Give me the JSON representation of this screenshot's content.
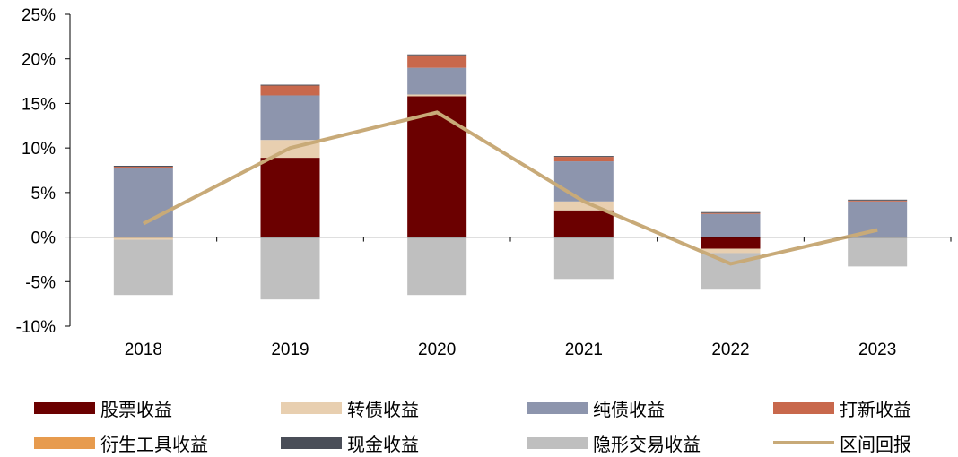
{
  "chart_data": {
    "type": "bar",
    "stacked": true,
    "categories": [
      "2018",
      "2019",
      "2020",
      "2021",
      "2022",
      "2023"
    ],
    "ylim": [
      -10,
      25
    ],
    "yticks": [
      "25%",
      "20%",
      "15%",
      "10%",
      "5%",
      "0%",
      "-5%",
      "-10%"
    ],
    "ytick_values": [
      25,
      20,
      15,
      10,
      5,
      0,
      -5,
      -10
    ],
    "series": [
      {
        "name": "股票收益",
        "color": "#6b0000",
        "values": [
          0,
          8.9,
          15.8,
          3.0,
          -1.3,
          0
        ]
      },
      {
        "name": "转债收益",
        "color": "#e8cfb0",
        "values": [
          -0.3,
          2.0,
          0.2,
          1.0,
          -0.5,
          0
        ]
      },
      {
        "name": "纯债收益",
        "color": "#8d95ad",
        "values": [
          7.7,
          5.0,
          3.0,
          4.5,
          2.6,
          4.0
        ]
      },
      {
        "name": "打新收益",
        "color": "#c8684c",
        "values": [
          0.2,
          1.1,
          1.4,
          0.5,
          0.1,
          0.1
        ]
      },
      {
        "name": "衍生工具收益",
        "color": "#e79b4e",
        "values": [
          0,
          0,
          0,
          0,
          0,
          0
        ]
      },
      {
        "name": "现金收益",
        "color": "#4a4e58",
        "values": [
          0.1,
          0.1,
          0.1,
          0.1,
          0.1,
          0.1
        ]
      },
      {
        "name": "隐形交易收益",
        "color": "#bfbfbf",
        "values": [
          -6.2,
          -7.0,
          -6.5,
          -4.7,
          -4.1,
          -3.3
        ]
      }
    ],
    "line": {
      "name": "区间回报",
      "color": "#c8aa78",
      "values": [
        1.5,
        10.0,
        14.0,
        4.0,
        -3.0,
        0.8
      ]
    },
    "grid": false,
    "legend_position": "bottom"
  }
}
